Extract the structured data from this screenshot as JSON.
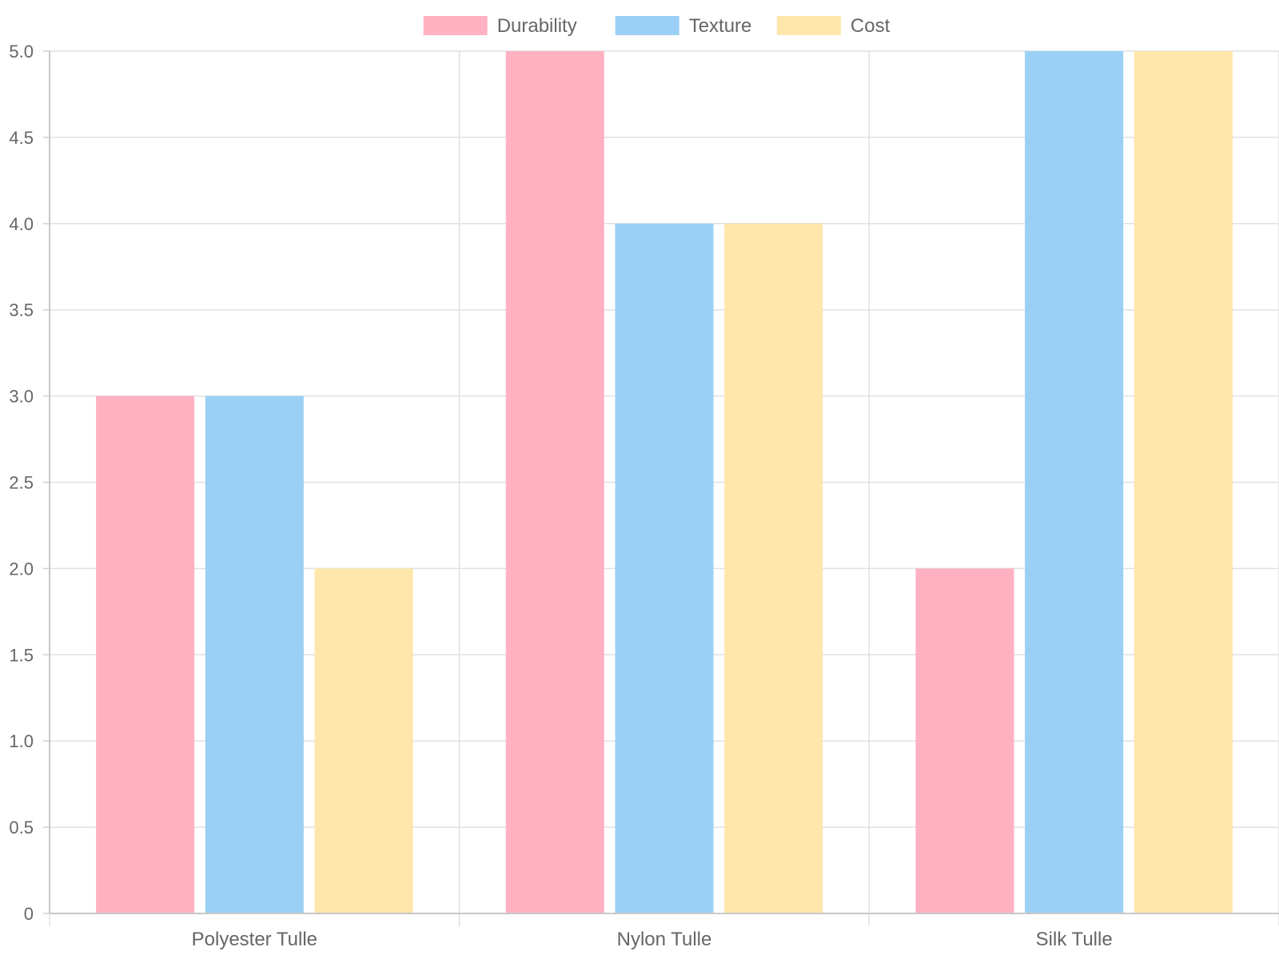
{
  "chart_data": {
    "type": "bar",
    "categories": [
      "Polyester Tulle",
      "Nylon Tulle",
      "Silk Tulle"
    ],
    "series": [
      {
        "name": "Durability",
        "values": [
          3,
          5,
          2
        ],
        "color": "#ffb1c1"
      },
      {
        "name": "Texture",
        "values": [
          3,
          4,
          5
        ],
        "color": "#9ad0f5"
      },
      {
        "name": "Cost",
        "values": [
          2,
          4,
          5
        ],
        "color": "#ffe6aa"
      }
    ],
    "ylim": [
      0,
      5
    ],
    "yticks": [
      "0",
      "0.5",
      "1.0",
      "1.5",
      "2.0",
      "2.5",
      "3.0",
      "3.5",
      "4.0",
      "4.5",
      "5.0"
    ],
    "grid": true,
    "legend_position": "top"
  }
}
